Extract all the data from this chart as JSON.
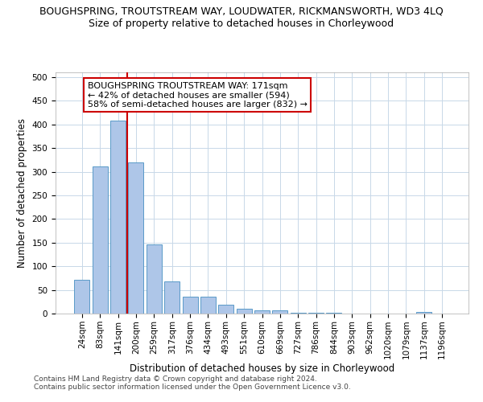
{
  "title": "BOUGHSPRING, TROUTSTREAM WAY, LOUDWATER, RICKMANSWORTH, WD3 4LQ",
  "subtitle": "Size of property relative to detached houses in Chorleywood",
  "xlabel": "Distribution of detached houses by size in Chorleywood",
  "ylabel": "Number of detached properties",
  "categories": [
    "24sqm",
    "83sqm",
    "141sqm",
    "200sqm",
    "259sqm",
    "317sqm",
    "376sqm",
    "434sqm",
    "493sqm",
    "551sqm",
    "610sqm",
    "669sqm",
    "727sqm",
    "786sqm",
    "844sqm",
    "903sqm",
    "962sqm",
    "1020sqm",
    "1079sqm",
    "1137sqm",
    "1196sqm"
  ],
  "values": [
    72,
    311,
    408,
    320,
    147,
    68,
    35,
    35,
    18,
    11,
    6,
    6,
    1,
    1,
    1,
    0,
    0,
    0,
    0,
    4,
    0
  ],
  "bar_color": "#aec6e8",
  "bar_edge_color": "#5a9ac8",
  "vline_x": 2.5,
  "vline_color": "#cc0000",
  "annotation_line1": "BOUGHSPRING TROUTSTREAM WAY: 171sqm",
  "annotation_line2": "← 42% of detached houses are smaller (594)",
  "annotation_line3": "58% of semi-detached houses are larger (832) →",
  "annotation_box_color": "#ffffff",
  "annotation_box_edge": "#cc0000",
  "ylim": [
    0,
    510
  ],
  "yticks": [
    0,
    50,
    100,
    150,
    200,
    250,
    300,
    350,
    400,
    450,
    500
  ],
  "footer1": "Contains HM Land Registry data © Crown copyright and database right 2024.",
  "footer2": "Contains public sector information licensed under the Open Government Licence v3.0.",
  "title_fontsize": 9,
  "subtitle_fontsize": 9,
  "xlabel_fontsize": 8.5,
  "ylabel_fontsize": 8.5,
  "tick_fontsize": 7.5,
  "annot_fontsize": 8,
  "footer_fontsize": 6.5,
  "background_color": "#ffffff",
  "grid_color": "#c8d8e8"
}
